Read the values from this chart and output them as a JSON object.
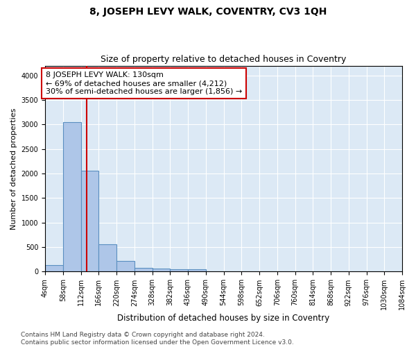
{
  "title1": "8, JOSEPH LEVY WALK, COVENTRY, CV3 1QH",
  "title2": "Size of property relative to detached houses in Coventry",
  "xlabel": "Distribution of detached houses by size in Coventry",
  "ylabel": "Number of detached properties",
  "footnote1": "Contains HM Land Registry data © Crown copyright and database right 2024.",
  "footnote2": "Contains public sector information licensed under the Open Government Licence v3.0.",
  "bin_edges": [
    4,
    58,
    112,
    166,
    220,
    274,
    328,
    382,
    436,
    490,
    544,
    598,
    652,
    706,
    760,
    814,
    868,
    922,
    976,
    1030,
    1084
  ],
  "bar_heights": [
    140,
    3050,
    2060,
    560,
    220,
    80,
    60,
    50,
    50,
    0,
    0,
    0,
    0,
    0,
    0,
    0,
    0,
    0,
    0,
    0
  ],
  "bar_color": "#aec6e8",
  "bar_edgecolor": "#5a8fc0",
  "bg_color": "#dce9f5",
  "property_size": 130,
  "vline_color": "#cc0000",
  "annotation_text": "8 JOSEPH LEVY WALK: 130sqm\n← 69% of detached houses are smaller (4,212)\n30% of semi-detached houses are larger (1,856) →",
  "annotation_box_edgecolor": "#cc0000",
  "annotation_box_facecolor": "#ffffff",
  "ylim": [
    0,
    4200
  ],
  "yticks": [
    0,
    500,
    1000,
    1500,
    2000,
    2500,
    3000,
    3500,
    4000
  ],
  "title1_fontsize": 10,
  "title2_fontsize": 9,
  "xlabel_fontsize": 8.5,
  "ylabel_fontsize": 8,
  "footnote_fontsize": 6.5,
  "tick_label_fontsize": 7,
  "annot_fontsize": 8
}
